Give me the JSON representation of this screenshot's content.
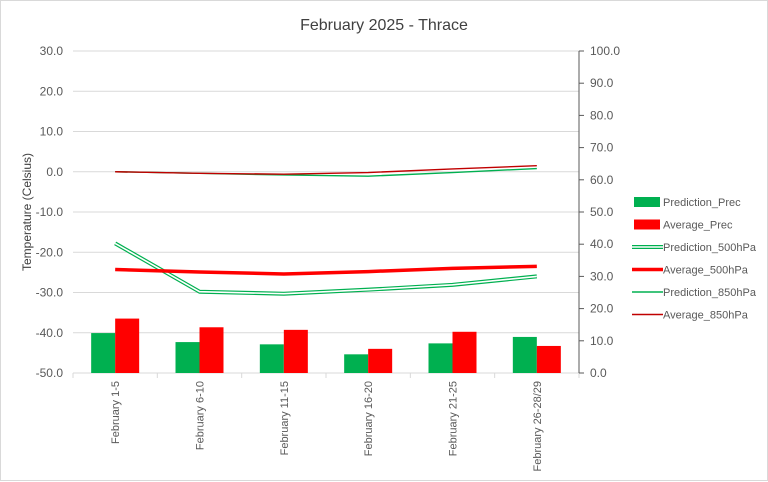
{
  "chart_data": {
    "type": "bar",
    "title": "February 2025 - Thrace",
    "ylabel": "Temperature (Celsius)",
    "categories": [
      "February 1-5",
      "February 6-10",
      "February 11-15",
      "February 16-20",
      "February 21-25",
      "February 26-28/29"
    ],
    "y_left": {
      "min": -50,
      "max": 30,
      "step": 10,
      "ticks": [
        "30.0",
        "20.0",
        "10.0",
        "0.0",
        "-10.0",
        "-20.0",
        "-30.0",
        "-40.0",
        "-50.0"
      ]
    },
    "y_right": {
      "min": 0,
      "max": 100,
      "step": 10,
      "ticks": [
        "100.0",
        "90.0",
        "80.0",
        "70.0",
        "60.0",
        "50.0",
        "40.0",
        "30.0",
        "20.0",
        "10.0",
        "0.0"
      ]
    },
    "gridlines": true,
    "legend_position": "right",
    "series": [
      {
        "name": "Prediction_Prec",
        "kind": "bar",
        "axis": "right",
        "color": "#00b050",
        "values": [
          12.4,
          9.6,
          8.9,
          5.8,
          9.2,
          11.2
        ]
      },
      {
        "name": "Average_Prec",
        "kind": "bar",
        "axis": "right",
        "color": "#ff0000",
        "values": [
          16.9,
          14.2,
          13.4,
          7.5,
          12.8,
          8.4
        ]
      },
      {
        "name": "Prediction_500hPa",
        "kind": "line",
        "style": "double",
        "axis": "left",
        "color": "#00b050",
        "values": [
          -17.8,
          -29.8,
          -30.3,
          -29.3,
          -28.1,
          -26.0
        ]
      },
      {
        "name": "Average_500hPa",
        "kind": "line",
        "style": "thick",
        "axis": "left",
        "color": "#ff0000",
        "values": [
          -24.3,
          -24.9,
          -25.4,
          -24.8,
          -24.0,
          -23.5
        ]
      },
      {
        "name": "Prediction_850hPa",
        "kind": "line",
        "style": "thin",
        "axis": "left",
        "color": "#00b050",
        "values": [
          0.0,
          -0.4,
          -0.8,
          -1.1,
          -0.2,
          0.8
        ]
      },
      {
        "name": "Average_850hPa",
        "kind": "line",
        "style": "thin",
        "axis": "left",
        "color": "#c00000",
        "values": [
          0.0,
          -0.4,
          -0.6,
          -0.2,
          0.7,
          1.5
        ]
      }
    ]
  }
}
